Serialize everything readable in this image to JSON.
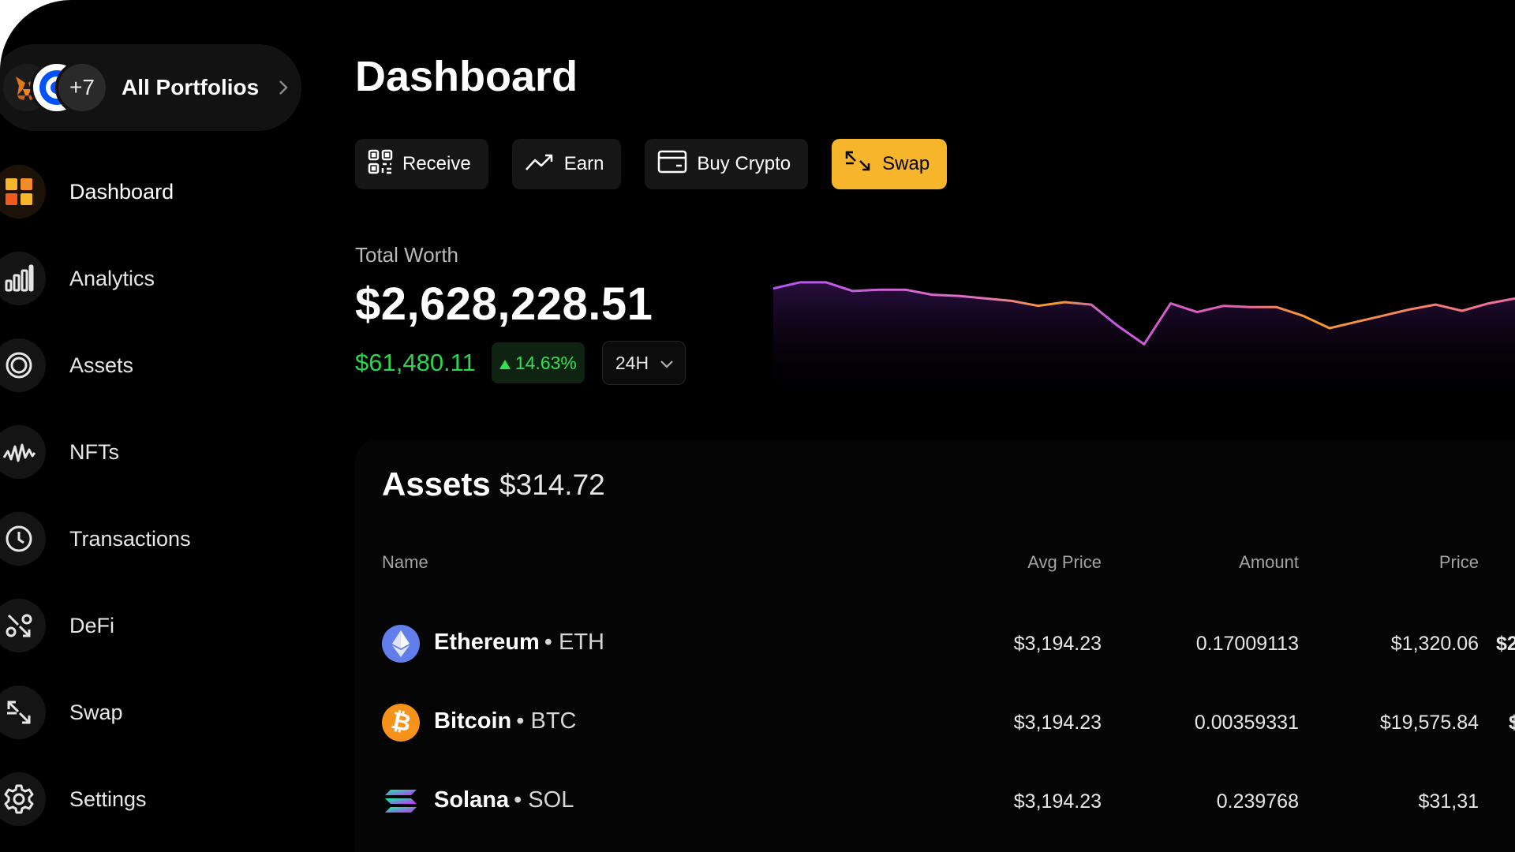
{
  "sidebar": {
    "portfolio": {
      "more_count": "+7",
      "label": "All Portfolios"
    },
    "items": [
      {
        "label": "Dashboard",
        "icon": "dashboard-icon",
        "active": true
      },
      {
        "label": "Analytics",
        "icon": "analytics-icon"
      },
      {
        "label": "Assets",
        "icon": "assets-icon"
      },
      {
        "label": "NFTs",
        "icon": "nfts-icon"
      },
      {
        "label": "Transactions",
        "icon": "clock-icon"
      },
      {
        "label": "DeFi",
        "icon": "defi-icon"
      },
      {
        "label": "Swap",
        "icon": "swap-icon"
      },
      {
        "label": "Settings",
        "icon": "gear-icon"
      }
    ]
  },
  "main": {
    "title": "Dashboard",
    "actions": [
      {
        "label": "Receive",
        "icon": "qr-code-icon"
      },
      {
        "label": "Earn",
        "icon": "trend-up-icon"
      },
      {
        "label": "Buy Crypto",
        "icon": "card-icon"
      },
      {
        "label": "Swap",
        "icon": "swap-icon",
        "primary": true
      }
    ],
    "total_worth": {
      "label": "Total Worth",
      "value": "$2,628,228.51",
      "change_amount": "$61,480.11",
      "change_percent": "14.63%",
      "range": "24H"
    }
  },
  "chart_data": {
    "type": "line",
    "series": [
      {
        "values": [
          60,
          65,
          65,
          58,
          59,
          59,
          55,
          54,
          52,
          50,
          46,
          49,
          47,
          30,
          15,
          48,
          41,
          46,
          45,
          45,
          38,
          28,
          33,
          38,
          43,
          47,
          42,
          48,
          52
        ]
      }
    ]
  },
  "assets": {
    "title": "Assets",
    "total": "$314.72",
    "columns": {
      "name": "Name",
      "avg_price": "Avg Price",
      "amount": "Amount",
      "price": "Price"
    },
    "rows": [
      {
        "name": "Ethereum",
        "ticker": "• ETH",
        "avg_price": "$3,194.23",
        "amount": "0.17009113",
        "price": "$1,320.06",
        "value": "$2"
      },
      {
        "name": "Bitcoin",
        "ticker": "• BTC",
        "avg_price": "$3,194.23",
        "amount": "0.00359331",
        "price": "$19,575.84",
        "value": "$"
      },
      {
        "name": "Solana",
        "ticker": "• SOL",
        "avg_price": "$3,194.23",
        "amount": "0.239768",
        "price": "$31,31",
        "value": ""
      }
    ]
  },
  "colors": {
    "accent": "#f7b52c",
    "positive": "#2bd64a",
    "chart_start": "#b455f0",
    "chart_mid": "#f07ca3",
    "chart_low": "#f7a020"
  }
}
